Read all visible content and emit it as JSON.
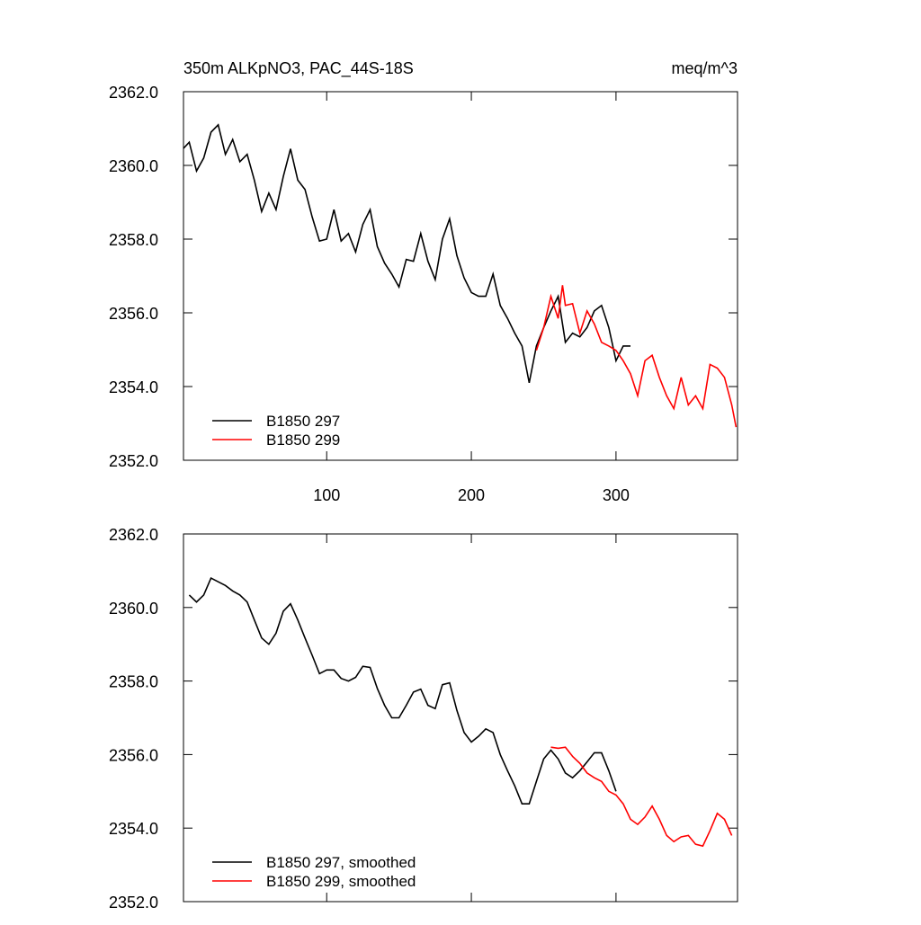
{
  "chart_data": [
    {
      "type": "line",
      "title": "350m ALKpNO3, PAC_44S-18S",
      "right_title": "meq/m^3",
      "xlim": [
        1,
        384
      ],
      "ylim": [
        2352,
        2362
      ],
      "xticks": [
        100,
        200,
        300
      ],
      "show_xtick_labels": true,
      "yticks": [
        {
          "value": 2352,
          "label": "2352.0"
        },
        {
          "value": 2354,
          "label": "2354.0"
        },
        {
          "value": 2356,
          "label": "2356.0"
        },
        {
          "value": 2358,
          "label": "2358.0"
        },
        {
          "value": 2360,
          "label": "2360.0"
        },
        {
          "value": 2362,
          "label": "2362.0"
        }
      ],
      "series": [
        {
          "name": "B1850 297",
          "color": "#000000",
          "x": [
            1,
            5,
            10,
            15,
            20,
            25,
            30,
            35,
            40,
            45,
            50,
            55,
            60,
            65,
            70,
            75,
            80,
            85,
            90,
            95,
            100,
            105,
            110,
            115,
            120,
            125,
            130,
            135,
            140,
            145,
            150,
            155,
            160,
            165,
            170,
            175,
            180,
            185,
            190,
            195,
            200,
            205,
            210,
            215,
            220,
            225,
            230,
            235,
            240,
            245,
            250,
            255,
            260,
            265,
            270,
            275,
            280,
            285,
            290,
            295,
            300,
            305,
            310
          ],
          "values": [
            2360.46,
            2360.63,
            2359.85,
            2360.2,
            2360.9,
            2361.1,
            2360.3,
            2360.7,
            2360.1,
            2360.3,
            2359.6,
            2358.75,
            2359.25,
            2358.8,
            2359.7,
            2360.45,
            2359.6,
            2359.35,
            2358.6,
            2357.95,
            2358.0,
            2358.8,
            2357.95,
            2358.15,
            2357.65,
            2358.4,
            2358.8,
            2357.8,
            2357.35,
            2357.05,
            2356.7,
            2357.45,
            2357.4,
            2358.15,
            2357.4,
            2356.9,
            2358.0,
            2358.55,
            2357.55,
            2356.95,
            2356.55,
            2356.45,
            2356.45,
            2357.05,
            2356.2,
            2355.85,
            2355.45,
            2355.1,
            2354.1,
            2355.1,
            2355.6,
            2356.05,
            2356.45,
            2355.2,
            2355.45,
            2355.35,
            2355.6,
            2356.05,
            2356.2,
            2355.6,
            2354.7,
            2355.1,
            2355.1
          ]
        },
        {
          "name": "B1850 299",
          "color": "#ff0000",
          "x": [
            245,
            250,
            255,
            260,
            263,
            265,
            270,
            275,
            280,
            285,
            290,
            295,
            300,
            305,
            310,
            315,
            320,
            325,
            330,
            335,
            340,
            345,
            350,
            355,
            360,
            365,
            370,
            375,
            380,
            383
          ],
          "values": [
            2354.98,
            2355.6,
            2356.45,
            2355.85,
            2356.75,
            2356.2,
            2356.25,
            2355.45,
            2356.05,
            2355.7,
            2355.2,
            2355.1,
            2354.98,
            2354.7,
            2354.35,
            2353.75,
            2354.7,
            2354.85,
            2354.25,
            2353.75,
            2353.4,
            2354.25,
            2353.5,
            2353.75,
            2353.4,
            2354.6,
            2354.5,
            2354.25,
            2353.5,
            2352.9
          ]
        }
      ]
    },
    {
      "type": "line",
      "xlim": [
        1,
        384
      ],
      "ylim": [
        2352,
        2362
      ],
      "xticks": [
        100,
        200,
        300
      ],
      "show_xtick_labels": false,
      "yticks": [
        {
          "value": 2352,
          "label": "2352.0"
        },
        {
          "value": 2354,
          "label": "2354.0"
        },
        {
          "value": 2356,
          "label": "2356.0"
        },
        {
          "value": 2358,
          "label": "2358.0"
        },
        {
          "value": 2360,
          "label": "2360.0"
        },
        {
          "value": 2362,
          "label": "2362.0"
        }
      ],
      "series": [
        {
          "name": "B1850 297, smoothed",
          "color": "#000000",
          "x": [
            5,
            10,
            15,
            20,
            25,
            30,
            35,
            40,
            45,
            50,
            55,
            60,
            65,
            70,
            75,
            80,
            85,
            90,
            95,
            100,
            105,
            110,
            115,
            120,
            125,
            130,
            135,
            140,
            145,
            150,
            155,
            160,
            165,
            170,
            175,
            180,
            185,
            190,
            195,
            200,
            205,
            210,
            215,
            220,
            225,
            230,
            235,
            240,
            245,
            250,
            255,
            260,
            265,
            270,
            275,
            280,
            285,
            290,
            295,
            300
          ],
          "values": [
            2360.34,
            2360.15,
            2360.34,
            2360.8,
            2360.7,
            2360.6,
            2360.45,
            2360.34,
            2360.15,
            2359.66,
            2359.17,
            2359.0,
            2359.3,
            2359.9,
            2360.1,
            2359.66,
            2359.17,
            2358.7,
            2358.2,
            2358.3,
            2358.3,
            2358.07,
            2358.0,
            2358.1,
            2358.4,
            2358.37,
            2357.8,
            2357.34,
            2357.0,
            2357.0,
            2357.34,
            2357.7,
            2357.78,
            2357.34,
            2357.25,
            2357.9,
            2357.95,
            2357.2,
            2356.6,
            2356.34,
            2356.5,
            2356.7,
            2356.6,
            2356.0,
            2355.56,
            2355.15,
            2354.66,
            2354.66,
            2355.27,
            2355.88,
            2356.12,
            2355.88,
            2355.5,
            2355.37,
            2355.56,
            2355.8,
            2356.05,
            2356.05,
            2355.56,
            2355.0
          ]
        },
        {
          "name": "B1850 299, smoothed",
          "color": "#ff0000",
          "x": [
            255,
            260,
            265,
            270,
            275,
            280,
            285,
            290,
            295,
            300,
            305,
            310,
            315,
            320,
            325,
            330,
            335,
            340,
            345,
            350,
            355,
            360,
            365,
            370,
            375,
            380
          ],
          "values": [
            2356.2,
            2356.17,
            2356.2,
            2355.95,
            2355.76,
            2355.5,
            2355.37,
            2355.27,
            2355.0,
            2354.9,
            2354.66,
            2354.24,
            2354.1,
            2354.3,
            2354.6,
            2354.24,
            2353.8,
            2353.63,
            2353.76,
            2353.8,
            2353.56,
            2353.51,
            2353.93,
            2354.4,
            2354.24,
            2353.8
          ]
        }
      ]
    }
  ]
}
